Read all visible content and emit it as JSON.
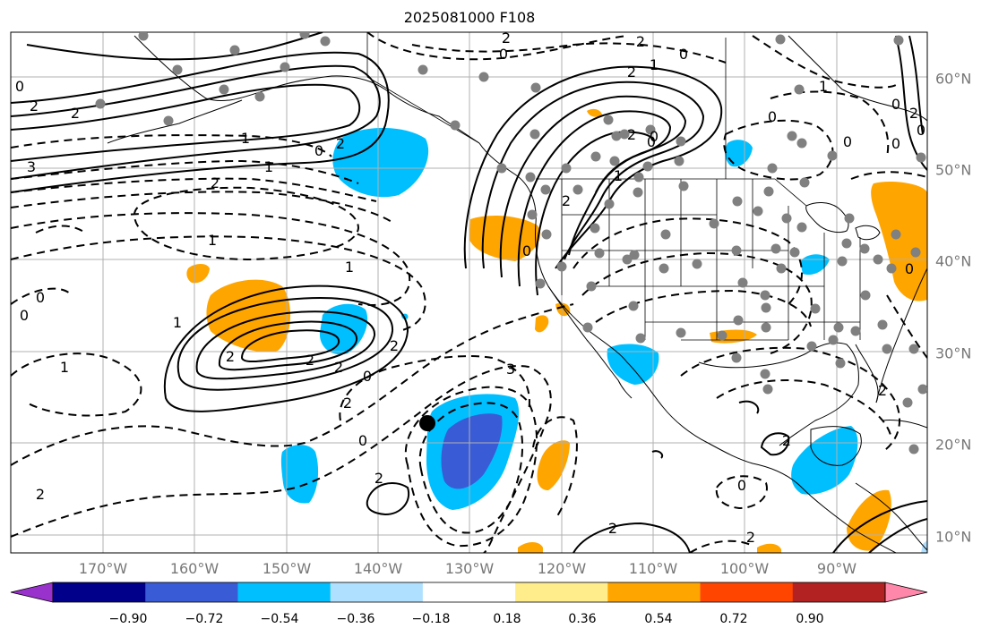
{
  "title": "2025081000 F108",
  "colors": {
    "land_outline": "#000000",
    "grid": "#b0b0b0",
    "station_dot": "#808080",
    "marker": "#000000"
  },
  "lon_labels": [
    "170°W",
    "160°W",
    "150°W",
    "140°W",
    "130°W",
    "120°W",
    "110°W",
    "100°W",
    "90°W"
  ],
  "lat_labels": [
    "60°N",
    "50°N",
    "40°N",
    "30°N",
    "20°N",
    "10°N"
  ],
  "colorbar": {
    "colors": [
      "#9932cc",
      "#00008b",
      "#3a5bd6",
      "#00bfff",
      "#b0e0ff",
      "#ffffff",
      "#ffec8b",
      "#ffa500",
      "#ff4500",
      "#b22222",
      "#ff88aa"
    ],
    "tick_labels": [
      "−0.90",
      "−0.72",
      "−0.54",
      "−0.36",
      "−0.18",
      "0.18",
      "0.36",
      "0.54",
      "0.72",
      "0.90"
    ]
  },
  "contour_labels": [
    "2",
    "2",
    "0",
    "0",
    "2",
    "1",
    "0",
    "2",
    "2",
    "1",
    "0",
    "2",
    "1",
    "3",
    "2",
    "1",
    "1",
    "0",
    "0",
    "1",
    "2",
    "2",
    "2",
    "1",
    "3",
    "2",
    "0",
    "2",
    "2",
    "2",
    "0",
    "2",
    "2",
    "2",
    "0",
    "2",
    "0",
    "1",
    "2",
    "0",
    "0",
    "1",
    "0",
    "0",
    "2",
    "0",
    "0",
    "0",
    "2",
    "0",
    "1",
    "0"
  ]
}
